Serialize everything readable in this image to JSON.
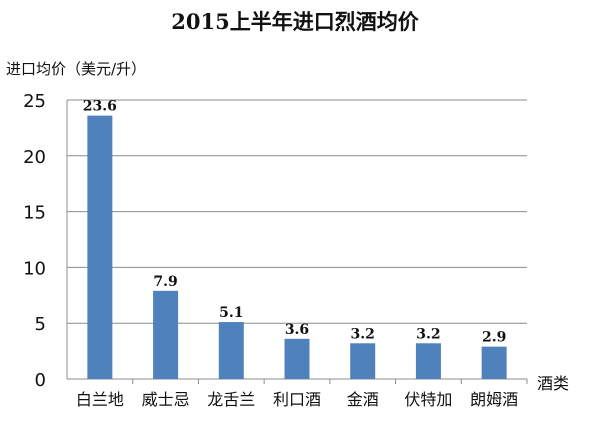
{
  "chart_data": {
    "type": "bar",
    "title": "2015上半年进口烈酒均价",
    "ylabel": "进口均价（美元/升）",
    "xlabel": "酒类",
    "categories": [
      "白兰地",
      "威士忌",
      "龙舌兰",
      "利口酒",
      "金酒",
      "伏特加",
      "朗姆酒"
    ],
    "values": [
      23.6,
      7.9,
      5.1,
      3.6,
      3.2,
      3.2,
      2.9
    ],
    "value_labels": [
      "23.6",
      "7.9",
      "5.1",
      "3.6",
      "3.2",
      "3.2",
      "2.9"
    ],
    "yticks": [
      0,
      5,
      10,
      15,
      20,
      25
    ],
    "ylim": [
      0,
      25
    ],
    "grid": true,
    "bar_color": "#4f81bd",
    "grid_color": "#8c8c8c"
  }
}
